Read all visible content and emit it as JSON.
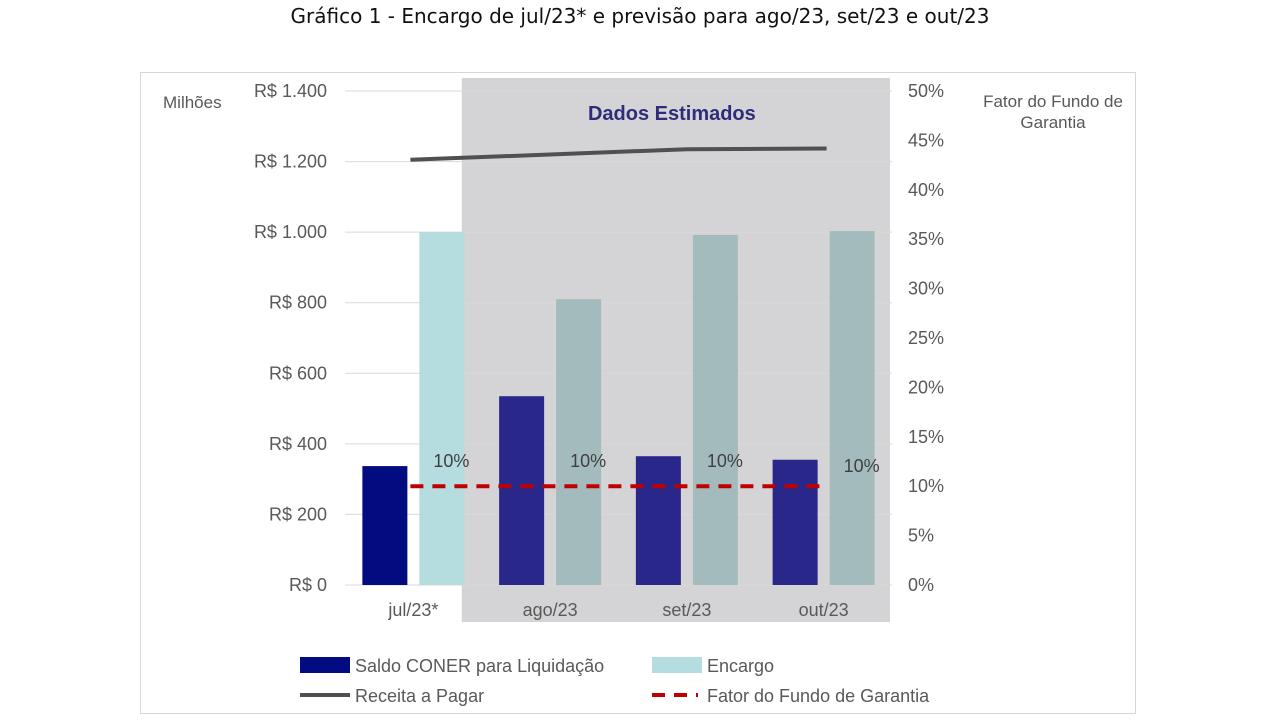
{
  "page": {
    "title": "Gráfico 1 - Encargo de jul/23* e previsão para ago/23, set/23 e out/23"
  },
  "chart_data": {
    "type": "bar",
    "title": "Gráfico 1 - Encargo de jul/23* e previsão para ago/23, set/23 e out/23",
    "categories": [
      "jul/23*",
      "ago/23",
      "set/23",
      "out/23"
    ],
    "ylabel": "Milhões",
    "y2label": "Fator do Fundo de Garantia",
    "ylim": [
      0,
      1400
    ],
    "y_ticks": [
      0,
      200,
      400,
      600,
      800,
      1000,
      1200,
      1400
    ],
    "y_tick_labels": [
      "R$ 0",
      "R$ 200",
      "R$ 400",
      "R$ 600",
      "R$ 800",
      "R$ 1.000",
      "R$ 1.200",
      "R$ 1.400"
    ],
    "y2lim": [
      0,
      50
    ],
    "y2_ticks": [
      0,
      5,
      10,
      15,
      20,
      25,
      30,
      35,
      40,
      45,
      50
    ],
    "y2_tick_labels": [
      "0%",
      "5%",
      "10%",
      "15%",
      "20%",
      "25%",
      "30%",
      "35%",
      "40%",
      "45%",
      "50%"
    ],
    "grid": true,
    "legend_position": "bottom",
    "shaded_region": {
      "label": "Dados Estimados",
      "from_category": "ago/23",
      "to_category": "out/23",
      "color": "#d4d3d5"
    },
    "series": [
      {
        "name": "Saldo CONER para Liquidação",
        "kind": "bar",
        "axis": "left",
        "values": [
          337,
          535,
          365,
          355
        ],
        "colors": [
          "#030b80",
          "#29278a",
          "#29278a",
          "#29278a"
        ]
      },
      {
        "name": "Encargo",
        "kind": "bar",
        "axis": "left",
        "values": [
          1000,
          810,
          992,
          1003
        ],
        "colors": [
          "#b5dde0",
          "#a4bbbe",
          "#a4bbbe",
          "#a4bbbe"
        ]
      },
      {
        "name": "Receita a Pagar",
        "kind": "line",
        "axis": "left",
        "values": [
          1205,
          1220,
          1235,
          1237
        ],
        "color": "#505050"
      },
      {
        "name": "Fator do Fundo de Garantia",
        "kind": "line",
        "axis": "right",
        "dashed": true,
        "values": [
          10,
          10,
          10,
          10
        ],
        "color": "#c00000",
        "data_labels": [
          "10%",
          "10%",
          "10%",
          "10%"
        ]
      }
    ]
  }
}
